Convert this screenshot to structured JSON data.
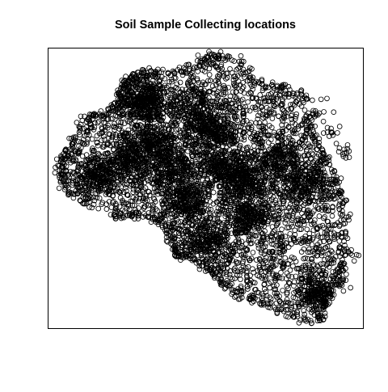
{
  "chart_data": {
    "type": "scatter",
    "title": "Soil Sample Collecting locations",
    "xlabel": "",
    "ylabel": "",
    "grid": false,
    "legend": "none",
    "axes": "hidden",
    "marker": "open-circle",
    "point_color": "#000000",
    "xlim": [
      0,
      100
    ],
    "ylim": [
      0,
      100
    ],
    "series": [
      {
        "outline": [
          [
            4,
            60
          ],
          [
            7,
            64
          ],
          [
            10,
            72
          ],
          [
            14,
            76
          ],
          [
            19,
            76
          ],
          [
            24,
            88
          ],
          [
            31,
            92
          ],
          [
            40,
            91
          ],
          [
            47,
            94
          ],
          [
            52,
            98
          ],
          [
            61,
            95
          ],
          [
            66,
            88
          ],
          [
            76,
            86
          ],
          [
            82,
            82
          ],
          [
            83,
            73
          ],
          [
            88,
            62
          ],
          [
            92,
            53
          ],
          [
            95,
            42
          ],
          [
            94,
            20
          ],
          [
            89,
            10
          ],
          [
            86,
            3
          ],
          [
            80,
            3
          ],
          [
            70,
            8
          ],
          [
            64,
            10
          ],
          [
            56,
            14
          ],
          [
            53,
            20
          ],
          [
            50,
            22
          ],
          [
            46,
            25
          ],
          [
            42,
            25
          ],
          [
            40,
            28
          ],
          [
            39,
            33
          ],
          [
            37,
            37
          ],
          [
            30,
            40
          ],
          [
            22,
            40
          ],
          [
            12,
            45
          ],
          [
            7,
            48
          ],
          [
            4,
            53
          ]
        ],
        "dense_clusters": [
          [
            [
              26,
              84
            ],
            4.5
          ],
          [
            [
              32,
              80
            ],
            3.5
          ],
          [
            [
              47,
              77
            ],
            4.5
          ],
          [
            [
              53,
              70
            ],
            3.5
          ],
          [
            [
              34,
              66
            ],
            4
          ],
          [
            [
              26,
              60
            ],
            4
          ],
          [
            [
              40,
              56
            ],
            4.5
          ],
          [
            [
              55,
              58
            ],
            4
          ],
          [
            [
              62,
              53
            ],
            3.5
          ],
          [
            [
              73,
              60
            ],
            4.5
          ],
          [
            [
              82,
              52
            ],
            4
          ],
          [
            [
              50,
              31
            ],
            4
          ],
          [
            [
              44,
              46
            ],
            3.5
          ],
          [
            [
              86,
              12
            ],
            3.5
          ],
          [
            [
              64,
              40
            ],
            3.5
          ],
          [
            [
              16,
              54
            ],
            3.5
          ]
        ],
        "outliers": [
          [
            [
              87,
              78
            ],
            2
          ],
          [
            [
              90,
              70
            ],
            1.5
          ],
          [
            [
              94,
              62
            ],
            1.5
          ],
          [
            [
              96,
              28
            ],
            2
          ],
          [
            [
              93,
              17
            ],
            1.5
          ]
        ]
      }
    ]
  }
}
